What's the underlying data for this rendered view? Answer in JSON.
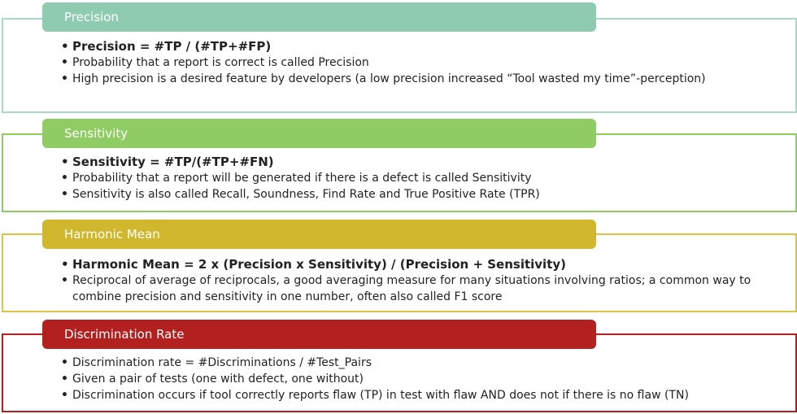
{
  "sections": [
    {
      "title": "Precision",
      "color": "#8fcbb1",
      "border": "#a9d8c5",
      "items": [
        "Precision = #TP / (#TP+#FP)",
        "Probability that a report is correct is called Precision",
        "High precision is a desired feature by developers (a low precision increased “Tool wasted my time”-perception)"
      ]
    },
    {
      "title": "Sensitivity",
      "color": "#8fcc63",
      "border": "#8fcc63",
      "items": [
        "Sensitivity = #TP/(#TP+#FN)",
        "Probability that a report will be generated if there is a defect is called Sensitivity",
        "Sensitivity is also called Recall, Soundness, Find Rate and True Positive Rate (TPR)"
      ]
    },
    {
      "title": "Harmonic Mean",
      "color": "#d1b72d",
      "border": "#d9c449",
      "items": [
        "Harmonic Mean = 2 x (Precision x Sensitivity) / (Precision + Sensitivity)",
        "Reciprocal of average of reciprocals, a good averaging measure for many situations involving ratios; a common way to combine precision and sensitivity in one number, often also called F1 score"
      ]
    },
    {
      "title": "Discrimination Rate",
      "color": "#b2201f",
      "border": "#b2201f",
      "items": [
        "Discrimination rate = #Discriminations / #Test_Pairs",
        "Given a pair of tests (one with defect, one without)",
        "Discrimination occurs if tool correctly reports flaw (TP) in test with flaw AND does not if there is no flaw (TN)"
      ]
    }
  ]
}
